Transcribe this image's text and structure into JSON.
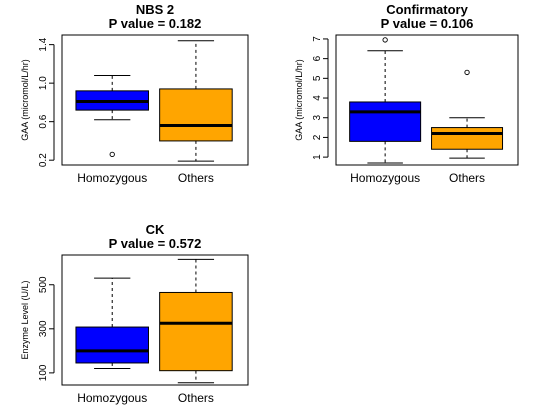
{
  "chart_data": [
    {
      "type": "boxplot",
      "title": "NBS 2",
      "subtitle": "P value =  0.182",
      "xlabel": "",
      "ylabel": "GAA (micromol/L/hr)",
      "ylim": [
        0.15,
        1.5
      ],
      "yticks": [
        0.2,
        0.6,
        1.0,
        1.4
      ],
      "ytick_labels": [
        "0.2",
        "0.6",
        "1.0",
        "1.4"
      ],
      "categories": [
        "Homozygous",
        "Others"
      ],
      "boxes": [
        {
          "name": "Homozygous",
          "color": "#0000ff",
          "whisker_low": 0.62,
          "q1": 0.72,
          "median": 0.81,
          "q3": 0.92,
          "whisker_high": 1.08,
          "outliers": [
            0.26
          ]
        },
        {
          "name": "Others",
          "color": "#ffa500",
          "whisker_low": 0.19,
          "q1": 0.4,
          "median": 0.56,
          "q3": 0.94,
          "whisker_high": 1.44,
          "outliers": []
        }
      ]
    },
    {
      "type": "boxplot",
      "title": "Confirmatory",
      "subtitle": "P value =  0.106",
      "xlabel": "",
      "ylabel": "GAA (micromol/L/hr)",
      "ylim": [
        0.6,
        7.2
      ],
      "yticks": [
        1,
        2,
        3,
        4,
        5,
        6,
        7
      ],
      "ytick_labels": [
        "1",
        "2",
        "3",
        "4",
        "5",
        "6",
        "7"
      ],
      "categories": [
        "Homozygous",
        "Others"
      ],
      "boxes": [
        {
          "name": "Homozygous",
          "color": "#0000ff",
          "whisker_low": 0.7,
          "q1": 1.8,
          "median": 3.3,
          "q3": 3.8,
          "whisker_high": 6.4,
          "outliers": [
            6.95
          ]
        },
        {
          "name": "Others",
          "color": "#ffa500",
          "whisker_low": 0.95,
          "q1": 1.4,
          "median": 2.2,
          "q3": 2.5,
          "whisker_high": 3.0,
          "outliers": [
            5.3
          ]
        }
      ]
    },
    {
      "type": "boxplot",
      "title": "CK",
      "subtitle": "P value =  0.572",
      "xlabel": "",
      "ylabel": "Enzyme Level (U/L)",
      "ylim": [
        45,
        635
      ],
      "yticks": [
        100,
        300,
        500
      ],
      "ytick_labels": [
        "100",
        "300",
        "500"
      ],
      "categories": [
        "Homozygous",
        "Others"
      ],
      "boxes": [
        {
          "name": "Homozygous",
          "color": "#0000ff",
          "whisker_low": 120,
          "q1": 145,
          "median": 200,
          "q3": 308,
          "whisker_high": 530,
          "outliers": []
        },
        {
          "name": "Others",
          "color": "#ffa500",
          "whisker_low": 55,
          "q1": 110,
          "median": 325,
          "q3": 465,
          "whisker_high": 615,
          "outliers": []
        }
      ]
    }
  ]
}
